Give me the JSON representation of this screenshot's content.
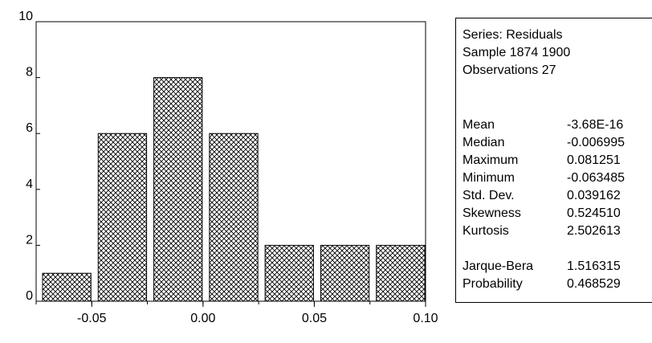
{
  "chart_data": {
    "type": "bar",
    "bin_edges": [
      -0.075,
      -0.05,
      -0.025,
      0.0,
      0.025,
      0.05,
      0.075,
      0.1
    ],
    "values": [
      1,
      6,
      8,
      6,
      2,
      2,
      2
    ],
    "xlim": [
      -0.075,
      0.1
    ],
    "ylim": [
      0,
      10
    ],
    "x_ticks": [
      -0.05,
      0.0,
      0.05,
      0.1
    ],
    "x_tick_labels": [
      "-0.05",
      "0.00",
      "0.05",
      "0.10"
    ],
    "y_ticks": [
      0,
      2,
      4,
      6,
      8,
      10
    ],
    "y_tick_labels": [
      "0",
      "2",
      "4",
      "6",
      "8",
      "10"
    ],
    "bar_fill": "crosshatch",
    "grid": false,
    "title": "",
    "xlabel": "",
    "ylabel": ""
  },
  "stats": {
    "series": "Series: Residuals",
    "sample": "Sample 1874 1900",
    "observations": "Observations 27",
    "rows": [
      {
        "label": "Mean",
        "value": "-3.68E-16"
      },
      {
        "label": "Median",
        "value": "-0.006995"
      },
      {
        "label": "Maximum",
        "value": "0.081251"
      },
      {
        "label": "Minimum",
        "value": "-0.063485"
      },
      {
        "label": "Std. Dev.",
        "value": "0.039162"
      },
      {
        "label": "Skewness",
        "value": "0.524510"
      },
      {
        "label": "Kurtosis",
        "value": "2.502613"
      },
      {
        "label": "Jarque-Bera",
        "value": "1.516315"
      },
      {
        "label": "Probability",
        "value": "0.468529"
      }
    ]
  }
}
